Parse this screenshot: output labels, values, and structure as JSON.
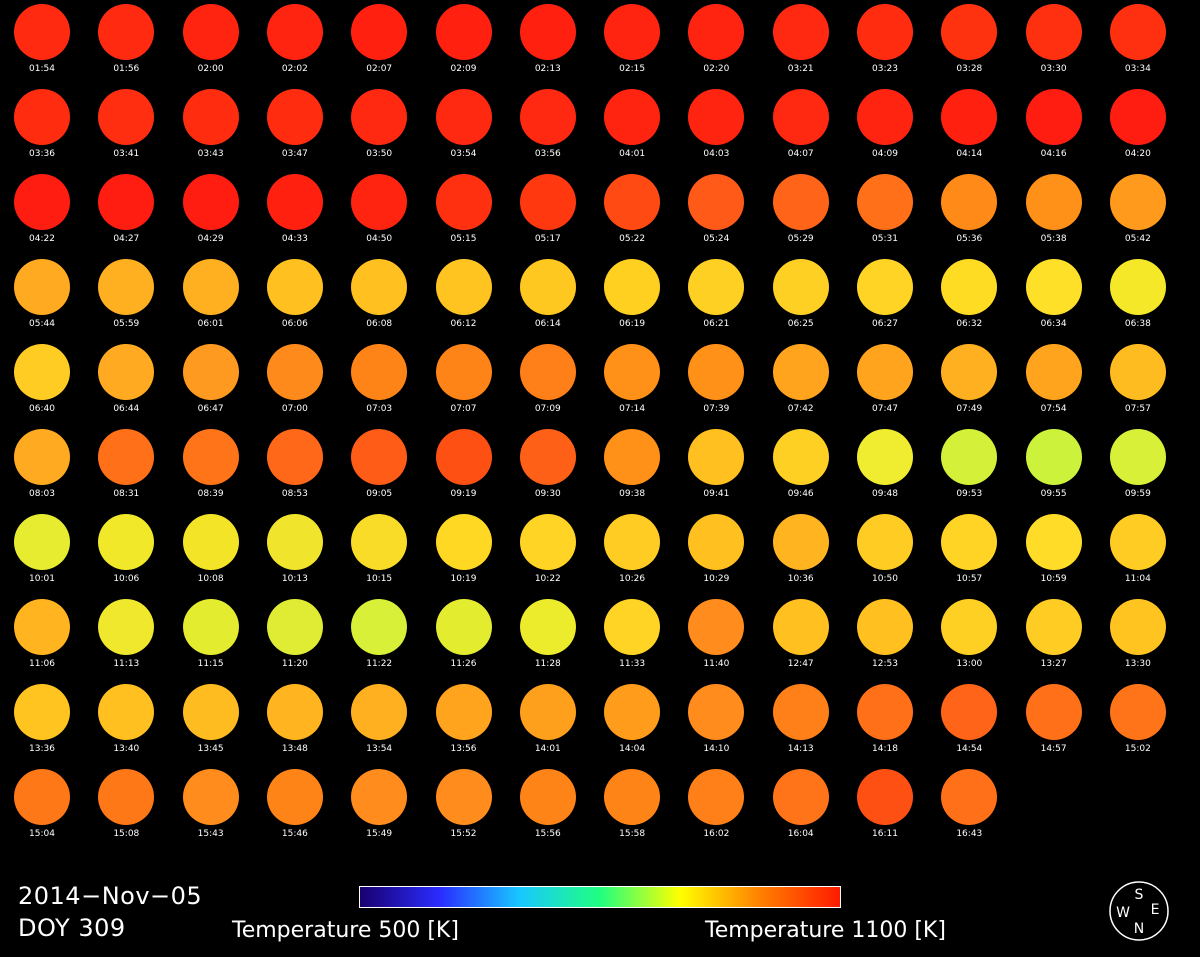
{
  "date": "2014−Nov−05",
  "doy": "DOY 309",
  "colorbar": {
    "min_label": "Temperature 500 [K]",
    "max_label": "Temperature 1100 [K]",
    "min_k": 500,
    "max_k": 1100,
    "colors": [
      "#1a0070",
      "#2a2cff",
      "#18c8ff",
      "#20ff80",
      "#ffff00",
      "#ff8000",
      "#ff1a00"
    ]
  },
  "compass": {
    "top": "S",
    "left": "W",
    "right": "E",
    "bottom": "N"
  },
  "frames": [
    {
      "time": "01:54",
      "color": "#ff2a10"
    },
    {
      "time": "01:56",
      "color": "#ff2a10"
    },
    {
      "time": "02:00",
      "color": "#ff2410"
    },
    {
      "time": "02:02",
      "color": "#ff2410"
    },
    {
      "time": "02:07",
      "color": "#ff2010"
    },
    {
      "time": "02:09",
      "color": "#ff2010"
    },
    {
      "time": "02:13",
      "color": "#ff2010"
    },
    {
      "time": "02:15",
      "color": "#ff2410"
    },
    {
      "time": "02:20",
      "color": "#ff2410"
    },
    {
      "time": "03:21",
      "color": "#ff2810"
    },
    {
      "time": "03:23",
      "color": "#ff2c10"
    },
    {
      "time": "03:28",
      "color": "#ff3210"
    },
    {
      "time": "03:30",
      "color": "#ff3010"
    },
    {
      "time": "03:34",
      "color": "#ff3010"
    },
    {
      "time": "03:36",
      "color": "#ff2c10"
    },
    {
      "time": "03:41",
      "color": "#ff2e10"
    },
    {
      "time": "03:43",
      "color": "#ff2c10"
    },
    {
      "time": "03:47",
      "color": "#ff2c10"
    },
    {
      "time": "03:50",
      "color": "#ff2810"
    },
    {
      "time": "03:54",
      "color": "#ff2810"
    },
    {
      "time": "03:56",
      "color": "#ff2810"
    },
    {
      "time": "04:01",
      "color": "#ff2410"
    },
    {
      "time": "04:03",
      "color": "#ff2410"
    },
    {
      "time": "04:07",
      "color": "#ff2810"
    },
    {
      "time": "04:09",
      "color": "#ff2410"
    },
    {
      "time": "04:14",
      "color": "#ff2010"
    },
    {
      "time": "04:16",
      "color": "#ff1c10"
    },
    {
      "time": "04:20",
      "color": "#ff1c10"
    },
    {
      "time": "04:22",
      "color": "#ff1c10"
    },
    {
      "time": "04:27",
      "color": "#ff1c10"
    },
    {
      "time": "04:29",
      "color": "#ff1c10"
    },
    {
      "time": "04:33",
      "color": "#ff2010"
    },
    {
      "time": "04:50",
      "color": "#ff2410"
    },
    {
      "time": "05:15",
      "color": "#ff3010"
    },
    {
      "time": "05:17",
      "color": "#ff3810"
    },
    {
      "time": "05:22",
      "color": "#ff4a14"
    },
    {
      "time": "05:24",
      "color": "#ff5a18"
    },
    {
      "time": "05:29",
      "color": "#ff6418"
    },
    {
      "time": "05:31",
      "color": "#ff7018"
    },
    {
      "time": "05:36",
      "color": "#ff8a18"
    },
    {
      "time": "05:38",
      "color": "#ff9018"
    },
    {
      "time": "05:42",
      "color": "#ff9a1c"
    },
    {
      "time": "05:44",
      "color": "#ffaa20"
    },
    {
      "time": "05:59",
      "color": "#ffb020"
    },
    {
      "time": "06:01",
      "color": "#ffb020"
    },
    {
      "time": "06:06",
      "color": "#ffc020"
    },
    {
      "time": "06:08",
      "color": "#ffc020"
    },
    {
      "time": "06:12",
      "color": "#ffc420"
    },
    {
      "time": "06:14",
      "color": "#ffc820"
    },
    {
      "time": "06:19",
      "color": "#ffd020"
    },
    {
      "time": "06:21",
      "color": "#ffd024"
    },
    {
      "time": "06:25",
      "color": "#ffd024"
    },
    {
      "time": "06:27",
      "color": "#ffd424"
    },
    {
      "time": "06:32",
      "color": "#ffdc24"
    },
    {
      "time": "06:34",
      "color": "#ffe028"
    },
    {
      "time": "06:38",
      "color": "#f4e828"
    },
    {
      "time": "06:40",
      "color": "#ffcc24"
    },
    {
      "time": "06:44",
      "color": "#ffaa20"
    },
    {
      "time": "06:47",
      "color": "#ff9a20"
    },
    {
      "time": "07:00",
      "color": "#ff8a1c"
    },
    {
      "time": "07:03",
      "color": "#ff8418"
    },
    {
      "time": "07:07",
      "color": "#ff8418"
    },
    {
      "time": "07:09",
      "color": "#ff8018"
    },
    {
      "time": "07:14",
      "color": "#ff9018"
    },
    {
      "time": "07:39",
      "color": "#ff9018"
    },
    {
      "time": "07:42",
      "color": "#ffa41c"
    },
    {
      "time": "07:47",
      "color": "#ffa41c"
    },
    {
      "time": "07:49",
      "color": "#ffb020"
    },
    {
      "time": "07:54",
      "color": "#ffa41c"
    },
    {
      "time": "07:57",
      "color": "#ffbc20"
    },
    {
      "time": "08:03",
      "color": "#ffaa20"
    },
    {
      "time": "08:31",
      "color": "#ff7018"
    },
    {
      "time": "08:39",
      "color": "#ff7418"
    },
    {
      "time": "08:53",
      "color": "#ff6818"
    },
    {
      "time": "09:05",
      "color": "#ff5c18"
    },
    {
      "time": "09:19",
      "color": "#ff5014"
    },
    {
      "time": "09:30",
      "color": "#ff6018"
    },
    {
      "time": "09:38",
      "color": "#ff9018"
    },
    {
      "time": "09:41",
      "color": "#ffc020"
    },
    {
      "time": "09:46",
      "color": "#ffd024"
    },
    {
      "time": "09:48",
      "color": "#f0ec30"
    },
    {
      "time": "09:53",
      "color": "#d4f038"
    },
    {
      "time": "09:55",
      "color": "#ccf23c"
    },
    {
      "time": "09:59",
      "color": "#d8f038"
    },
    {
      "time": "10:01",
      "color": "#e8ec30"
    },
    {
      "time": "10:06",
      "color": "#f0e828"
    },
    {
      "time": "10:08",
      "color": "#f4e428"
    },
    {
      "time": "10:13",
      "color": "#f0e42c"
    },
    {
      "time": "10:15",
      "color": "#f8dc28"
    },
    {
      "time": "10:19",
      "color": "#ffd824"
    },
    {
      "time": "10:22",
      "color": "#ffd424"
    },
    {
      "time": "10:26",
      "color": "#ffcc24"
    },
    {
      "time": "10:29",
      "color": "#ffc020"
    },
    {
      "time": "10:36",
      "color": "#ffb420"
    },
    {
      "time": "10:50",
      "color": "#ffcc24"
    },
    {
      "time": "10:57",
      "color": "#ffd424"
    },
    {
      "time": "10:59",
      "color": "#ffdc28"
    },
    {
      "time": "11:04",
      "color": "#ffcc24"
    },
    {
      "time": "11:06",
      "color": "#ffb420"
    },
    {
      "time": "11:13",
      "color": "#f0e82c"
    },
    {
      "time": "11:15",
      "color": "#e4ec30"
    },
    {
      "time": "11:20",
      "color": "#e0ec34"
    },
    {
      "time": "11:22",
      "color": "#d8f038"
    },
    {
      "time": "11:26",
      "color": "#e4ec30"
    },
    {
      "time": "11:28",
      "color": "#ecec2c"
    },
    {
      "time": "11:33",
      "color": "#ffd424"
    },
    {
      "time": "11:40",
      "color": "#ff8c1c"
    },
    {
      "time": "12:47",
      "color": "#ffc020"
    },
    {
      "time": "12:53",
      "color": "#ffc020"
    },
    {
      "time": "13:00",
      "color": "#ffd024"
    },
    {
      "time": "13:27",
      "color": "#ffcc24"
    },
    {
      "time": "13:30",
      "color": "#ffc420"
    },
    {
      "time": "13:36",
      "color": "#ffc420"
    },
    {
      "time": "13:40",
      "color": "#ffc020"
    },
    {
      "time": "13:45",
      "color": "#ffbc20"
    },
    {
      "time": "13:48",
      "color": "#ffb420"
    },
    {
      "time": "13:54",
      "color": "#ffb020"
    },
    {
      "time": "13:56",
      "color": "#ffa41c"
    },
    {
      "time": "14:01",
      "color": "#ffa01c"
    },
    {
      "time": "14:04",
      "color": "#ff9c1c"
    },
    {
      "time": "14:10",
      "color": "#ff8c1c"
    },
    {
      "time": "14:13",
      "color": "#ff8018"
    },
    {
      "time": "14:18",
      "color": "#ff7018"
    },
    {
      "time": "14:54",
      "color": "#ff6418"
    },
    {
      "time": "14:57",
      "color": "#ff7018"
    },
    {
      "time": "15:02",
      "color": "#ff7418"
    },
    {
      "time": "15:04",
      "color": "#ff7818"
    },
    {
      "time": "15:08",
      "color": "#ff7818"
    },
    {
      "time": "15:43",
      "color": "#ff8c1c"
    },
    {
      "time": "15:46",
      "color": "#ff8418"
    },
    {
      "time": "15:49",
      "color": "#ff8c1c"
    },
    {
      "time": "15:52",
      "color": "#ff8c1c"
    },
    {
      "time": "15:56",
      "color": "#ff8418"
    },
    {
      "time": "15:58",
      "color": "#ff8418"
    },
    {
      "time": "16:02",
      "color": "#ff8018"
    },
    {
      "time": "16:04",
      "color": "#ff7418"
    },
    {
      "time": "16:11",
      "color": "#ff5014"
    },
    {
      "time": "16:43",
      "color": "#ff7018"
    }
  ]
}
